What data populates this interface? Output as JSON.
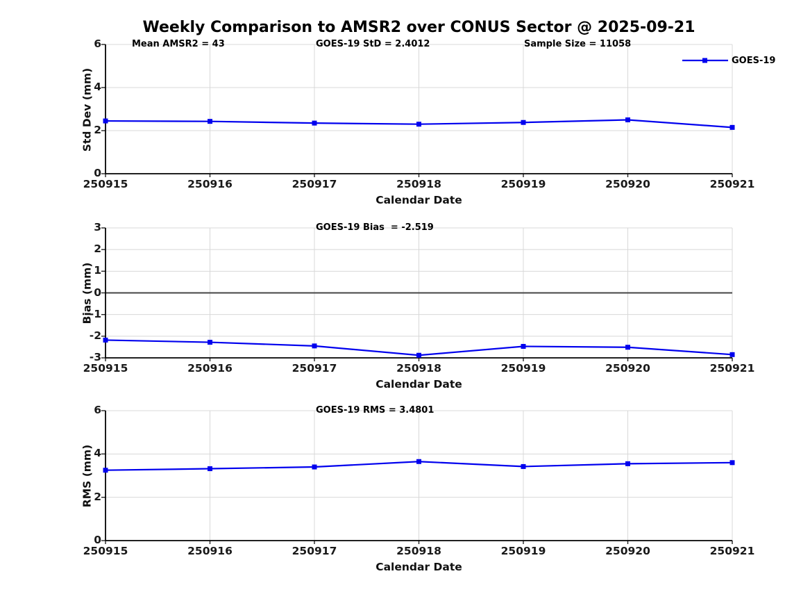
{
  "title": "Weekly Comparison to AMSR2 over CONUS Sector @ 2025-09-21",
  "accent_color": "#0000ee",
  "chart_data": [
    {
      "type": "line",
      "name": "stddev",
      "ylabel": "Std Dev (mm)",
      "xlabel": "Calendar Date",
      "ylim": [
        0,
        6
      ],
      "yticks": [
        0,
        2,
        4,
        6
      ],
      "grid": true,
      "zero_line": false,
      "annotations": [
        "Mean AMSR2 = 43",
        "GOES-19 StD = 2.4012",
        "Sample Size = 11058"
      ],
      "categories": [
        "250915",
        "250916",
        "250917",
        "250918",
        "250919",
        "250920",
        "250921"
      ],
      "series": [
        {
          "name": "GOES-19",
          "color": "#0000ee",
          "marker": "square",
          "values": [
            2.45,
            2.43,
            2.35,
            2.3,
            2.38,
            2.5,
            2.15
          ]
        }
      ],
      "legend_position": "top-right-outside"
    },
    {
      "type": "line",
      "name": "bias",
      "ylabel": "Bias (mm)",
      "xlabel": "Calendar Date",
      "ylim": [
        -3,
        3
      ],
      "yticks": [
        -3,
        -2,
        -1,
        0,
        1,
        2,
        3
      ],
      "grid": true,
      "zero_line": true,
      "annotations": [
        "GOES-19 Bias  = -2.519"
      ],
      "categories": [
        "250915",
        "250916",
        "250917",
        "250918",
        "250919",
        "250920",
        "250921"
      ],
      "series": [
        {
          "name": "GOES-19",
          "color": "#0000ee",
          "marker": "square",
          "values": [
            -2.18,
            -2.28,
            -2.45,
            -2.88,
            -2.47,
            -2.51,
            -2.85
          ]
        }
      ]
    },
    {
      "type": "line",
      "name": "rms",
      "ylabel": "RMS (mm)",
      "xlabel": "Calendar Date",
      "ylim": [
        0,
        6
      ],
      "yticks": [
        0,
        2,
        4,
        6
      ],
      "grid": true,
      "zero_line": false,
      "annotations": [
        "GOES-19 RMS = 3.4801"
      ],
      "categories": [
        "250915",
        "250916",
        "250917",
        "250918",
        "250919",
        "250920",
        "250921"
      ],
      "series": [
        {
          "name": "GOES-19",
          "color": "#0000ee",
          "marker": "square",
          "values": [
            3.25,
            3.32,
            3.4,
            3.65,
            3.42,
            3.55,
            3.6
          ]
        }
      ]
    }
  ]
}
